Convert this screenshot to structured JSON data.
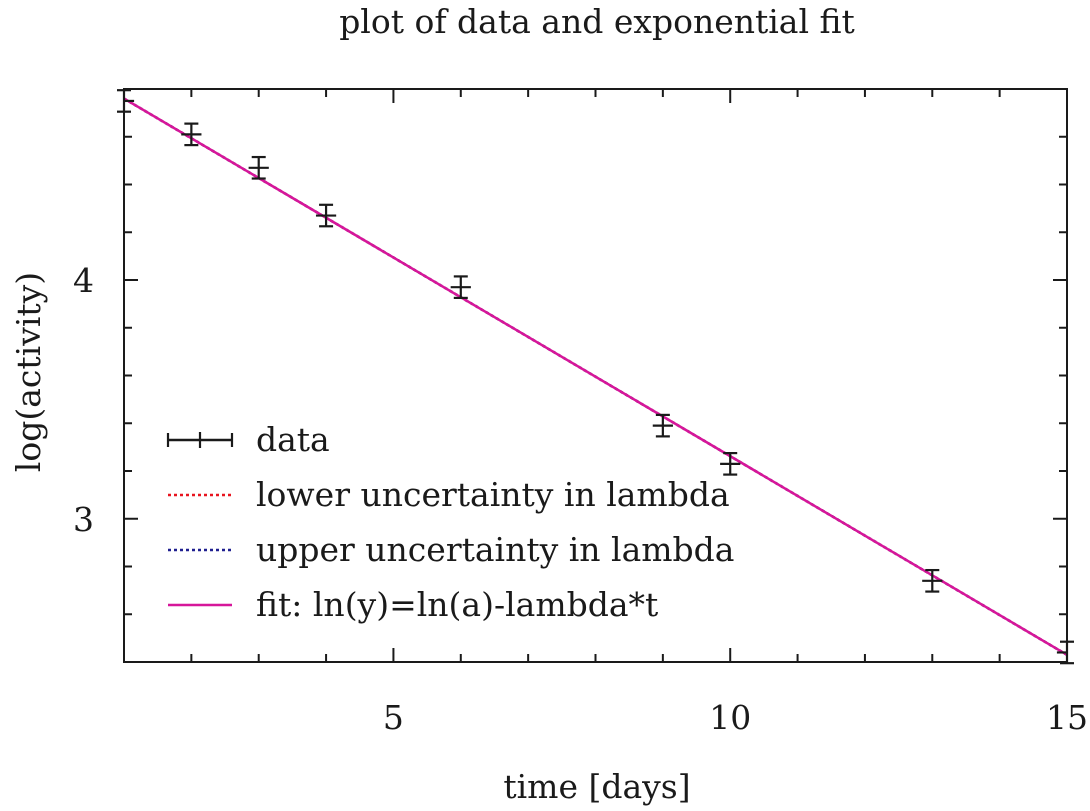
{
  "chart_data": {
    "type": "scatter",
    "title": "plot of data and exponential fit",
    "xlabel": "time [days]",
    "ylabel": "log(activity)",
    "xlim": [
      1,
      15
    ],
    "ylim": [
      2.4,
      4.8
    ],
    "xticks": [
      5,
      10,
      15
    ],
    "yticks": [
      3,
      4
    ],
    "x_minor_step": 1,
    "y_minor_step": 0.2,
    "grid": false,
    "legend_position": "bottom-left",
    "series": [
      {
        "name": "data",
        "kind": "errorbar",
        "color": "#1a1a1a",
        "x": [
          1,
          2,
          3,
          4,
          6,
          9,
          10,
          13,
          15
        ],
        "y": [
          4.75,
          4.61,
          4.47,
          4.27,
          3.97,
          3.39,
          3.23,
          2.74,
          2.44
        ],
        "yerr": [
          0.045,
          0.045,
          0.045,
          0.045,
          0.045,
          0.045,
          0.045,
          0.045,
          0.045
        ],
        "xerr": [
          0.15,
          0.15,
          0.15,
          0.15,
          0.15,
          0.15,
          0.15,
          0.15,
          0.15
        ]
      },
      {
        "name": "lower uncertainty in lambda",
        "kind": "line",
        "style": "dotted",
        "color": "#e8141f",
        "x": [
          1,
          15
        ],
        "y": [
          4.76,
          2.43
        ]
      },
      {
        "name": "upper uncertainty in lambda",
        "kind": "line",
        "style": "dotted",
        "color": "#1f1f8f",
        "x": [
          1,
          15
        ],
        "y": [
          4.76,
          2.43
        ]
      },
      {
        "name": "fit: ln(y)=ln(a)-lambda*t",
        "kind": "line",
        "style": "solid",
        "color": "#d6169a",
        "x": [
          1,
          15
        ],
        "y": [
          4.76,
          2.43
        ]
      }
    ]
  }
}
